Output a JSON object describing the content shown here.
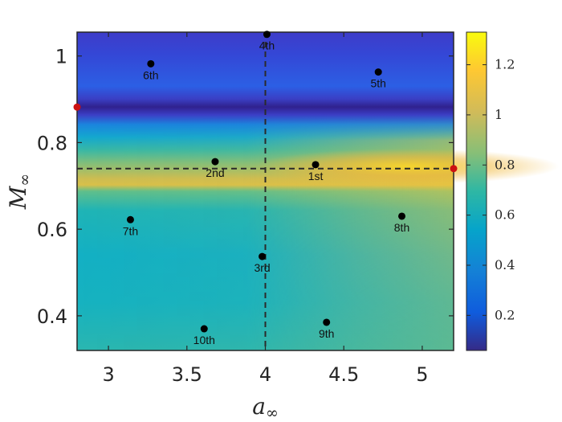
{
  "chart_data": {
    "type": "heatmap",
    "title": "",
    "xlabel": {
      "symbol": "a",
      "subscript": "∞"
    },
    "ylabel": {
      "symbol": "M",
      "subscript": "∞"
    },
    "xlim": [
      2.8,
      5.2
    ],
    "ylim": [
      0.32,
      1.055
    ],
    "xticks": [
      3,
      3.5,
      4,
      4.5,
      5
    ],
    "xtick_labels": [
      "3",
      "3.5",
      "4",
      "4.5",
      "5"
    ],
    "yticks": [
      0.4,
      0.6,
      0.8,
      1
    ],
    "ytick_labels": [
      "0.4",
      "0.6",
      "0.8",
      "1"
    ],
    "colorbar": {
      "range": [
        0.06,
        1.33
      ],
      "ticks": [
        0.2,
        0.4,
        0.6,
        0.8,
        1,
        1.2
      ],
      "tick_labels": [
        "0.2",
        "0.4",
        "0.6",
        "0.8",
        "1",
        "1.2"
      ],
      "colormap": "parula"
    },
    "reference_lines": {
      "x": 4,
      "y": 0.74
    },
    "edge_markers": [
      {
        "x": 2.8,
        "y": 0.882,
        "color": "#cc1111"
      },
      {
        "x": 5.2,
        "y": 0.74,
        "color": "#cc1111"
      }
    ],
    "points": [
      {
        "label": "1st",
        "x": 4.32,
        "y": 0.749
      },
      {
        "label": "2nd",
        "x": 3.68,
        "y": 0.756
      },
      {
        "label": "3rd",
        "x": 3.98,
        "y": 0.537
      },
      {
        "label": "4th",
        "x": 4.01,
        "y": 1.05
      },
      {
        "label": "5th",
        "x": 4.72,
        "y": 0.963
      },
      {
        "label": "6th",
        "x": 3.27,
        "y": 0.982
      },
      {
        "label": "7th",
        "x": 3.14,
        "y": 0.622
      },
      {
        "label": "8th",
        "x": 4.87,
        "y": 0.63
      },
      {
        "label": "9th",
        "x": 4.39,
        "y": 0.385
      },
      {
        "label": "10th",
        "x": 3.61,
        "y": 0.37
      }
    ]
  }
}
